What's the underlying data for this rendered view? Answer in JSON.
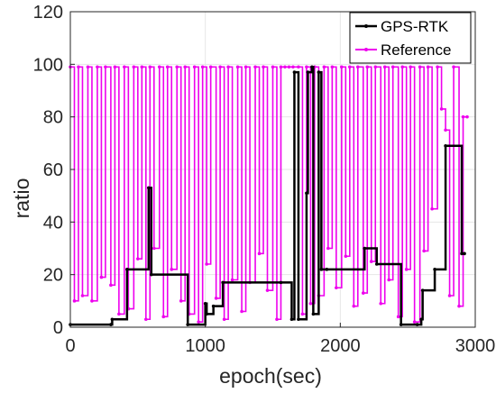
{
  "chart_data": {
    "type": "line",
    "title": "",
    "xlabel": "epoch(sec)",
    "ylabel": "ratio",
    "xlim": [
      0,
      3000
    ],
    "ylim": [
      0,
      120
    ],
    "xticks": [
      "0",
      "1000",
      "2000",
      "3000"
    ],
    "yticks": [
      "0",
      "20",
      "40",
      "60",
      "80",
      "100",
      "120"
    ],
    "grid": true,
    "legend_position": "top-right",
    "series": [
      {
        "name": "GPS-RTK",
        "color": "#000000",
        "step": true,
        "x": [
          0,
          300,
          310,
          420,
          580,
          600,
          870,
          1000,
          1010,
          1060,
          1130,
          1560,
          1640,
          1660,
          1690,
          1750,
          1760,
          1790,
          1800,
          1840,
          1860,
          1900,
          2180,
          2270,
          2450,
          2570,
          2600,
          2610,
          2700,
          2780,
          2900,
          2920
        ],
        "y": [
          1,
          1,
          3,
          22,
          53,
          20,
          1,
          9,
          5,
          8,
          17,
          17,
          3,
          97,
          3,
          51,
          97,
          99,
          5,
          97,
          22,
          22,
          30,
          24,
          1,
          1,
          3,
          14,
          22,
          69,
          28,
          28
        ]
      },
      {
        "name": "Reference",
        "color": "#ee00ee",
        "step": true,
        "x": [
          0,
          30,
          60,
          90,
          130,
          160,
          200,
          230,
          260,
          300,
          330,
          360,
          400,
          430,
          470,
          500,
          530,
          560,
          590,
          620,
          660,
          690,
          720,
          750,
          790,
          820,
          850,
          880,
          920,
          950,
          980,
          1010,
          1040,
          1080,
          1110,
          1140,
          1170,
          1200,
          1240,
          1270,
          1300,
          1330,
          1370,
          1400,
          1430,
          1460,
          1500,
          1530,
          1560,
          1590,
          1620,
          1650,
          1690,
          1720,
          1750,
          1780,
          1810,
          1840,
          1880,
          1910,
          1940,
          1970,
          2010,
          2040,
          2070,
          2100,
          2130,
          2170,
          2200,
          2230,
          2260,
          2300,
          2330,
          2360,
          2390,
          2430,
          2460,
          2490,
          2520,
          2550,
          2590,
          2620,
          2650,
          2680,
          2720,
          2750,
          2780,
          2810,
          2840,
          2880,
          2910,
          2940
        ],
        "y": [
          99,
          10,
          99,
          12,
          99,
          10,
          99,
          19,
          99,
          16,
          99,
          5,
          99,
          7,
          99,
          26,
          99,
          3,
          99,
          30,
          99,
          4,
          99,
          22,
          99,
          10,
          99,
          5,
          99,
          2,
          99,
          24,
          99,
          11,
          99,
          3,
          99,
          18,
          99,
          6,
          99,
          17,
          99,
          28,
          99,
          14,
          99,
          3,
          99,
          99,
          99,
          99,
          99,
          5,
          99,
          9,
          99,
          12,
          99,
          30,
          99,
          15,
          99,
          27,
          99,
          8,
          99,
          13,
          99,
          25,
          99,
          9,
          99,
          18,
          99,
          4,
          99,
          22,
          99,
          2,
          99,
          29,
          99,
          45,
          99,
          83,
          75,
          12,
          99,
          8,
          80,
          80
        ]
      }
    ]
  }
}
